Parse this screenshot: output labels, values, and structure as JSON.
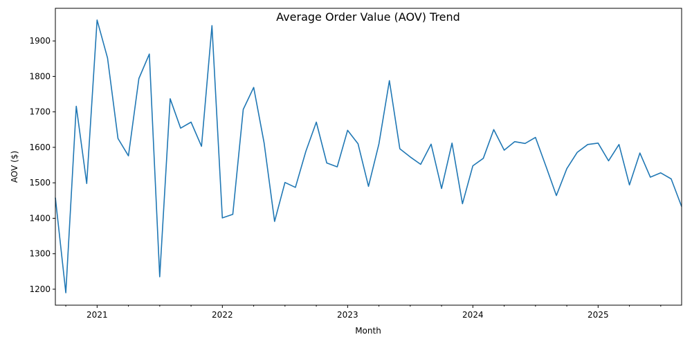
{
  "chart_data": {
    "type": "line",
    "title": "Average Order Value (AOV) Trend",
    "xlabel": "Month",
    "ylabel": "AOV ($)",
    "x_tick_labels": [
      "2021",
      "2022",
      "2023",
      "2024",
      "2025"
    ],
    "y_tick_labels": [
      "1200",
      "1300",
      "1400",
      "1500",
      "1600",
      "1700",
      "1800",
      "1900"
    ],
    "y_ticks": [
      1200,
      1300,
      1400,
      1500,
      1600,
      1700,
      1800,
      1900
    ],
    "ylim": [
      1155,
      1992
    ],
    "xlim": [
      "2020-09",
      "2025-09"
    ],
    "grid": false,
    "line_color": "#1f77b4",
    "series": [
      {
        "x": [
          "2020-09",
          "2020-10",
          "2020-11",
          "2020-12",
          "2021-01",
          "2021-02",
          "2021-03",
          "2021-04",
          "2021-05",
          "2021-06",
          "2021-07",
          "2021-08",
          "2021-09",
          "2021-10",
          "2021-11",
          "2021-12",
          "2022-01",
          "2022-02",
          "2022-03",
          "2022-04",
          "2022-05",
          "2022-06",
          "2022-07",
          "2022-08",
          "2022-09",
          "2022-10",
          "2022-11",
          "2022-12",
          "2023-01",
          "2023-02",
          "2023-03",
          "2023-04",
          "2023-05",
          "2023-06",
          "2023-07",
          "2023-08",
          "2023-09",
          "2023-10",
          "2023-11",
          "2023-12",
          "2024-01",
          "2024-02",
          "2024-03",
          "2024-04",
          "2024-05",
          "2024-06",
          "2024-07",
          "2024-08",
          "2024-09",
          "2024-10",
          "2024-11",
          "2024-12",
          "2025-01",
          "2025-02",
          "2025-03",
          "2025-04",
          "2025-05",
          "2025-06",
          "2025-07",
          "2025-08",
          "2025-09"
        ],
        "values": [
          1458,
          1190,
          1716,
          1498,
          1959,
          1852,
          1625,
          1576,
          1794,
          1863,
          1235,
          1737,
          1654,
          1671,
          1603,
          1943,
          1401,
          1411,
          1707,
          1769,
          1612,
          1391,
          1501,
          1487,
          1589,
          1671,
          1556,
          1545,
          1648,
          1610,
          1490,
          1610,
          1788,
          1596,
          1573,
          1552,
          1609,
          1484,
          1612,
          1441,
          1548,
          1569,
          1650,
          1592,
          1616,
          1611,
          1628,
          1547,
          1464,
          1540,
          1586,
          1608,
          1612,
          1562,
          1608,
          1494,
          1584,
          1516,
          1528,
          1511,
          1433
        ]
      }
    ]
  }
}
